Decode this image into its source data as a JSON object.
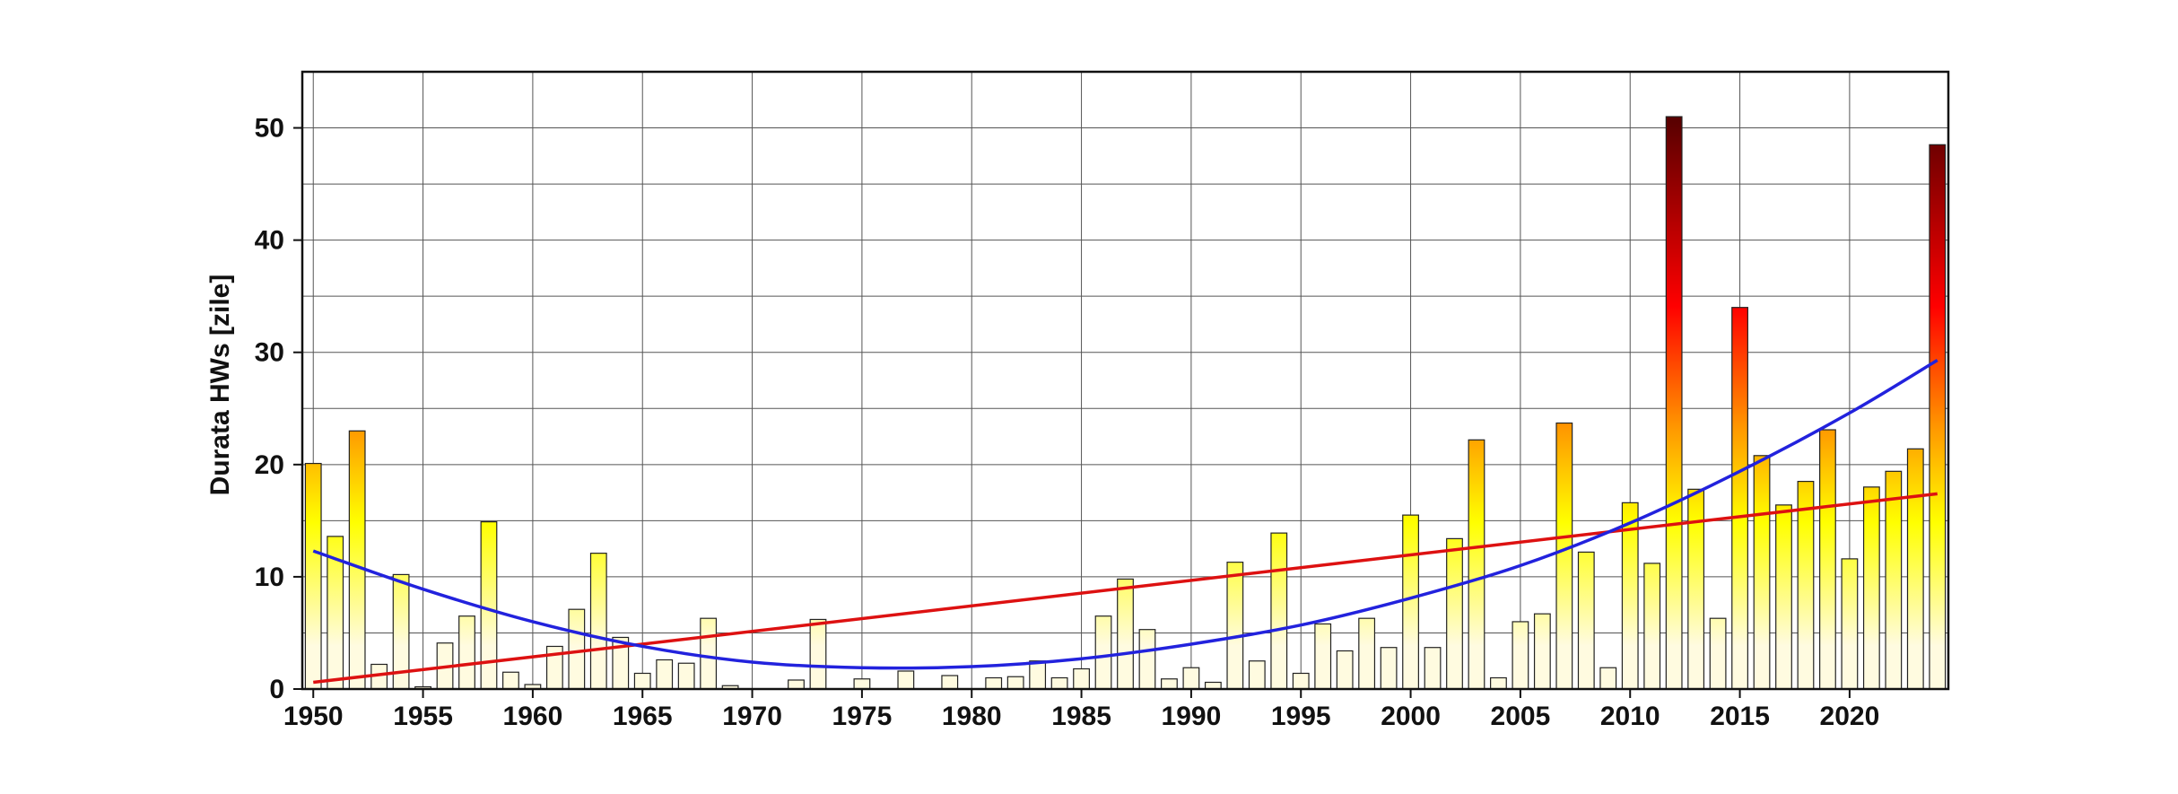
{
  "chart_data": {
    "type": "bar",
    "title": "",
    "xlabel": "",
    "ylabel": "Durata HWs [zile]",
    "xlim": [
      1949.5,
      2024.5
    ],
    "ylim": [
      0,
      55
    ],
    "x_ticks": [
      1950,
      1955,
      1960,
      1965,
      1970,
      1975,
      1980,
      1985,
      1990,
      1995,
      2000,
      2005,
      2010,
      2015,
      2020
    ],
    "y_ticks": [
      0,
      10,
      20,
      30,
      40,
      50
    ],
    "grid": true,
    "colors": {
      "low": "#fffbe0",
      "mid": "#ffff00",
      "high": "#ff9a00",
      "higher": "#ff0000",
      "max": "#5a0000",
      "linear_trend": "#dd1111",
      "poly_trend": "#2222dd",
      "grid": "#555555",
      "bar_edge": "#222222"
    },
    "series": [
      {
        "type": "bar",
        "x": [
          1950,
          1951,
          1952,
          1953,
          1954,
          1955,
          1956,
          1957,
          1958,
          1959,
          1960,
          1961,
          1962,
          1963,
          1964,
          1965,
          1966,
          1967,
          1968,
          1969,
          1970,
          1971,
          1972,
          1973,
          1974,
          1975,
          1976,
          1977,
          1978,
          1979,
          1980,
          1981,
          1982,
          1983,
          1984,
          1985,
          1986,
          1987,
          1988,
          1989,
          1990,
          1991,
          1992,
          1993,
          1994,
          1995,
          1996,
          1997,
          1998,
          1999,
          2000,
          2001,
          2002,
          2003,
          2004,
          2005,
          2006,
          2007,
          2008,
          2009,
          2010,
          2011,
          2012,
          2013,
          2014,
          2015,
          2016,
          2017,
          2018,
          2019,
          2020,
          2021,
          2022,
          2023,
          2024
        ],
        "values": [
          20.1,
          13.6,
          23,
          2.2,
          10.2,
          0.2,
          4.1,
          6.5,
          14.9,
          1.5,
          0.4,
          3.8,
          7.1,
          12.1,
          4.6,
          1.4,
          2.6,
          2.3,
          6.3,
          0.3,
          0,
          0,
          0.8,
          6.2,
          0,
          0.9,
          0,
          1.6,
          0,
          1.2,
          0,
          1.0,
          1.1,
          2.5,
          1.0,
          1.8,
          6.5,
          9.8,
          5.3,
          0.9,
          1.9,
          0.6,
          11.3,
          2.5,
          13.9,
          1.4,
          5.8,
          3.4,
          6.3,
          3.7,
          15.5,
          3.7,
          13.4,
          22.2,
          1.0,
          6.0,
          6.7,
          23.7,
          12.2,
          1.9,
          16.6,
          11.2,
          51,
          17.8,
          6.3,
          34,
          20.8,
          16.4,
          18.5,
          23.1,
          11.6,
          18,
          19.4,
          21.4,
          48.5
        ]
      },
      {
        "type": "line",
        "kind": "linear trend",
        "x": [
          1950,
          2024
        ],
        "values": [
          0.6,
          17.4
        ]
      },
      {
        "type": "line",
        "kind": "polynomial trend",
        "x": [
          1950,
          1955,
          1960,
          1965,
          1970,
          1975,
          1980,
          1985,
          1990,
          1995,
          2000,
          2005,
          2010,
          2015,
          2020,
          2024
        ],
        "values": [
          12.3,
          8.9,
          6.0,
          3.8,
          2.4,
          1.9,
          2.0,
          2.7,
          4.0,
          5.7,
          8.1,
          11.0,
          14.8,
          19.4,
          24.6,
          29.3
        ]
      }
    ]
  }
}
